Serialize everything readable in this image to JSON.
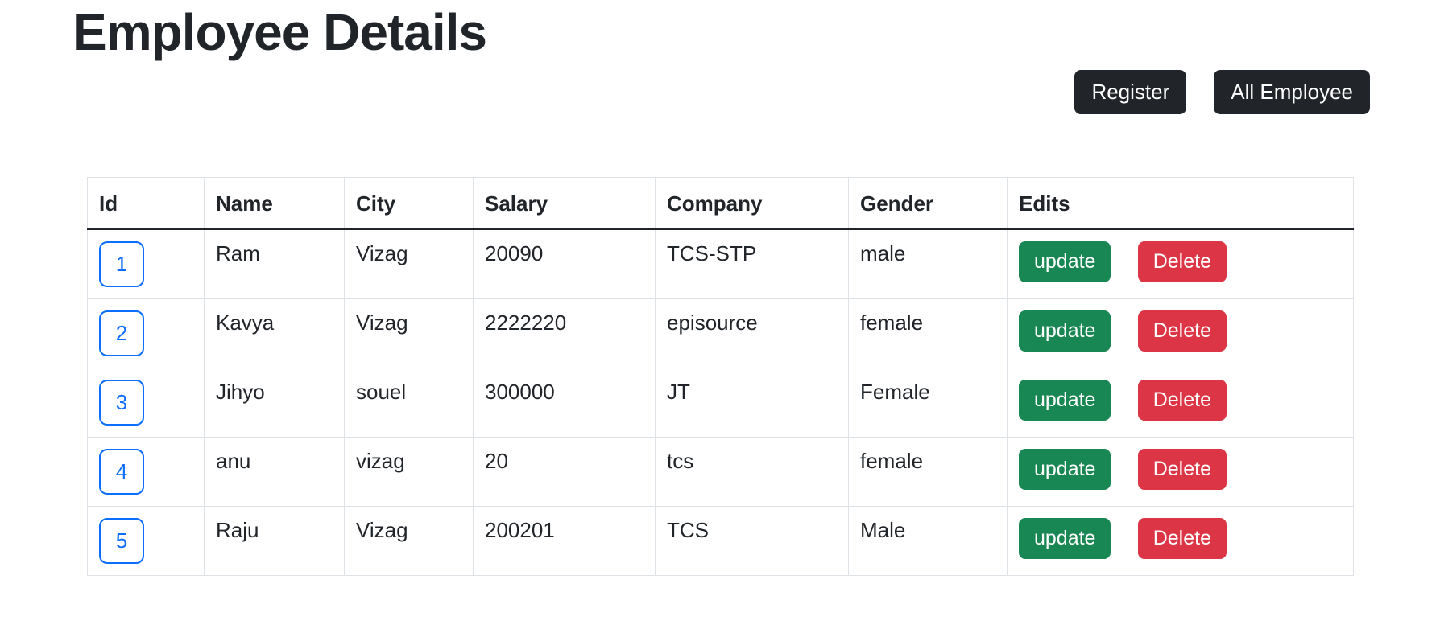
{
  "page": {
    "title": "Employee Details"
  },
  "toolbar": {
    "register_label": "Register",
    "all_employee_label": "All Employee"
  },
  "table": {
    "headers": [
      "Id",
      "Name",
      "City",
      "Salary",
      "Company",
      "Gender",
      "Edits"
    ],
    "rows": [
      {
        "id": "1",
        "name": "Ram",
        "city": "Vizag",
        "salary": "20090",
        "company": "TCS-STP",
        "gender": "male"
      },
      {
        "id": "2",
        "name": "Kavya",
        "city": "Vizag",
        "salary": "2222220",
        "company": "episource",
        "gender": "female"
      },
      {
        "id": "3",
        "name": "Jihyo",
        "city": "souel",
        "salary": "300000",
        "company": "JT",
        "gender": "Female"
      },
      {
        "id": "4",
        "name": "anu",
        "city": "vizag",
        "salary": "20",
        "company": "tcs",
        "gender": "female"
      },
      {
        "id": "5",
        "name": "Raju",
        "city": "Vizag",
        "salary": "200201",
        "company": "TCS",
        "gender": "Male"
      }
    ],
    "actions": {
      "update_label": "update",
      "delete_label": "Delete"
    }
  },
  "colors": {
    "dark": "#212529",
    "success": "#198754",
    "danger": "#dc3545",
    "primary": "#0d6efd",
    "table_border": "#dee2e6"
  }
}
